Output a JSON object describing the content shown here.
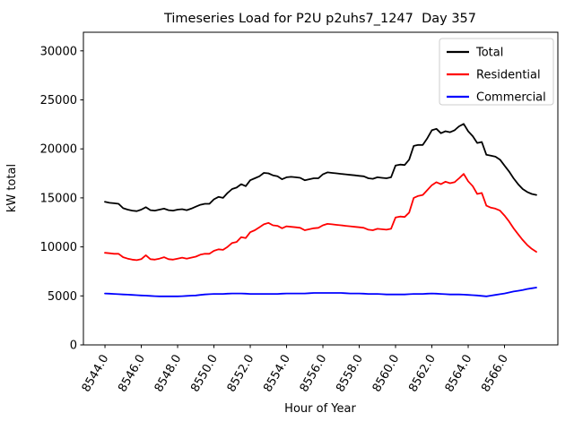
{
  "figure": {
    "title": "Timeseries Load for P2U p2uhs7_1247  Day 357",
    "xlabel": "Hour of Year",
    "ylabel": "kW total"
  },
  "chart_data": {
    "type": "line",
    "title": "Timeseries Load for P2U p2uhs7_1247  Day 357",
    "xlabel": "Hour of Year",
    "ylabel": "kW total",
    "grid": false,
    "legend_position": "upper right",
    "xlim": [
      8542.8125,
      8568.9375
    ],
    "ylim": [
      0,
      31900
    ],
    "x_ticks": [
      8544,
      8546,
      8548,
      8550,
      8552,
      8554,
      8556,
      8558,
      8560,
      8562,
      8564,
      8566
    ],
    "x_tick_labels": [
      "8544.0",
      "8546.0",
      "8548.0",
      "8550.0",
      "8552.0",
      "8554.0",
      "8556.0",
      "8558.0",
      "8560.0",
      "8562.0",
      "8564.0",
      "8566.0"
    ],
    "x_tick_rotation": 60,
    "y_ticks": [
      0,
      5000,
      10000,
      15000,
      20000,
      25000,
      30000
    ],
    "y_tick_labels": [
      "0",
      "5000",
      "10000",
      "15000",
      "20000",
      "25000",
      "30000"
    ],
    "x": [
      8544.0,
      8544.25,
      8544.5,
      8544.75,
      8545.0,
      8545.25,
      8545.5,
      8545.75,
      8546.0,
      8546.25,
      8546.5,
      8546.75,
      8547.0,
      8547.25,
      8547.5,
      8547.75,
      8548.0,
      8548.25,
      8548.5,
      8548.75,
      8549.0,
      8549.25,
      8549.5,
      8549.75,
      8550.0,
      8550.25,
      8550.5,
      8550.75,
      8551.0,
      8551.25,
      8551.5,
      8551.75,
      8552.0,
      8552.25,
      8552.5,
      8552.75,
      8553.0,
      8553.25,
      8553.5,
      8553.75,
      8554.0,
      8554.25,
      8554.5,
      8554.75,
      8555.0,
      8555.25,
      8555.5,
      8555.75,
      8556.0,
      8556.25,
      8556.5,
      8556.75,
      8557.0,
      8557.25,
      8557.5,
      8557.75,
      8558.0,
      8558.25,
      8558.5,
      8558.75,
      8559.0,
      8559.25,
      8559.5,
      8559.75,
      8560.0,
      8560.25,
      8560.5,
      8560.75,
      8561.0,
      8561.25,
      8561.5,
      8561.75,
      8562.0,
      8562.25,
      8562.5,
      8562.75,
      8563.0,
      8563.25,
      8563.5,
      8563.75,
      8564.0,
      8564.25,
      8564.5,
      8564.75,
      8565.0,
      8565.25,
      8565.5,
      8565.75,
      8566.0,
      8566.25,
      8566.5,
      8566.75,
      8567.0,
      8567.25,
      8567.5,
      8567.75
    ],
    "series": [
      {
        "name": "Total",
        "color": "#000000",
        "values": [
          14600,
          14500,
          14450,
          14400,
          13950,
          13800,
          13700,
          13650,
          13800,
          14050,
          13750,
          13700,
          13800,
          13900,
          13750,
          13700,
          13800,
          13850,
          13750,
          13900,
          14100,
          14300,
          14400,
          14400,
          14850,
          15100,
          15000,
          15500,
          15900,
          16050,
          16400,
          16200,
          16800,
          17000,
          17200,
          17550,
          17500,
          17300,
          17200,
          16900,
          17100,
          17150,
          17100,
          17050,
          16800,
          16900,
          17000,
          17000,
          17400,
          17600,
          17550,
          17500,
          17450,
          17400,
          17350,
          17300,
          17250,
          17200,
          17000,
          16950,
          17100,
          17050,
          17000,
          17100,
          18300,
          18400,
          18350,
          18900,
          20300,
          20400,
          20400,
          21100,
          21900,
          22050,
          21600,
          21800,
          21700,
          21900,
          22300,
          22550,
          21800,
          21300,
          20600,
          20700,
          19400,
          19300,
          19200,
          18900,
          18300,
          17700,
          17000,
          16400,
          15900,
          15600,
          15400,
          15300
        ]
      },
      {
        "name": "Residential",
        "color": "#ff0000",
        "values": [
          9400,
          9350,
          9300,
          9300,
          8950,
          8800,
          8700,
          8650,
          8750,
          9150,
          8750,
          8700,
          8800,
          8950,
          8750,
          8700,
          8800,
          8900,
          8800,
          8900,
          9000,
          9200,
          9300,
          9300,
          9600,
          9750,
          9700,
          10000,
          10400,
          10500,
          11000,
          10900,
          11500,
          11700,
          12000,
          12300,
          12450,
          12200,
          12150,
          11900,
          12100,
          12050,
          12000,
          11950,
          11700,
          11800,
          11900,
          11950,
          12200,
          12350,
          12300,
          12250,
          12200,
          12150,
          12100,
          12050,
          12000,
          11950,
          11750,
          11700,
          11850,
          11800,
          11750,
          11850,
          13000,
          13100,
          13050,
          13500,
          15000,
          15200,
          15300,
          15800,
          16300,
          16600,
          16400,
          16650,
          16500,
          16600,
          17000,
          17450,
          16700,
          16200,
          15400,
          15500,
          14200,
          14000,
          13900,
          13700,
          13200,
          12600,
          11900,
          11300,
          10700,
          10200,
          9800,
          9500
        ]
      },
      {
        "name": "Commercial",
        "color": "#0000ff",
        "values": [
          5250,
          5225,
          5200,
          5175,
          5150,
          5125,
          5100,
          5075,
          5050,
          5025,
          5000,
          4975,
          4950,
          4950,
          4950,
          4950,
          4950,
          4975,
          5000,
          5025,
          5050,
          5100,
          5150,
          5175,
          5200,
          5200,
          5200,
          5225,
          5250,
          5250,
          5250,
          5225,
          5200,
          5200,
          5200,
          5200,
          5200,
          5200,
          5200,
          5225,
          5250,
          5250,
          5250,
          5250,
          5250,
          5275,
          5300,
          5300,
          5300,
          5300,
          5300,
          5300,
          5300,
          5275,
          5250,
          5250,
          5250,
          5225,
          5200,
          5200,
          5200,
          5175,
          5150,
          5150,
          5150,
          5150,
          5150,
          5175,
          5200,
          5200,
          5200,
          5225,
          5250,
          5225,
          5200,
          5175,
          5150,
          5150,
          5150,
          5125,
          5100,
          5075,
          5050,
          5000,
          4950,
          5025,
          5100,
          5175,
          5250,
          5350,
          5450,
          5525,
          5600,
          5700,
          5775,
          5850
        ]
      }
    ]
  }
}
